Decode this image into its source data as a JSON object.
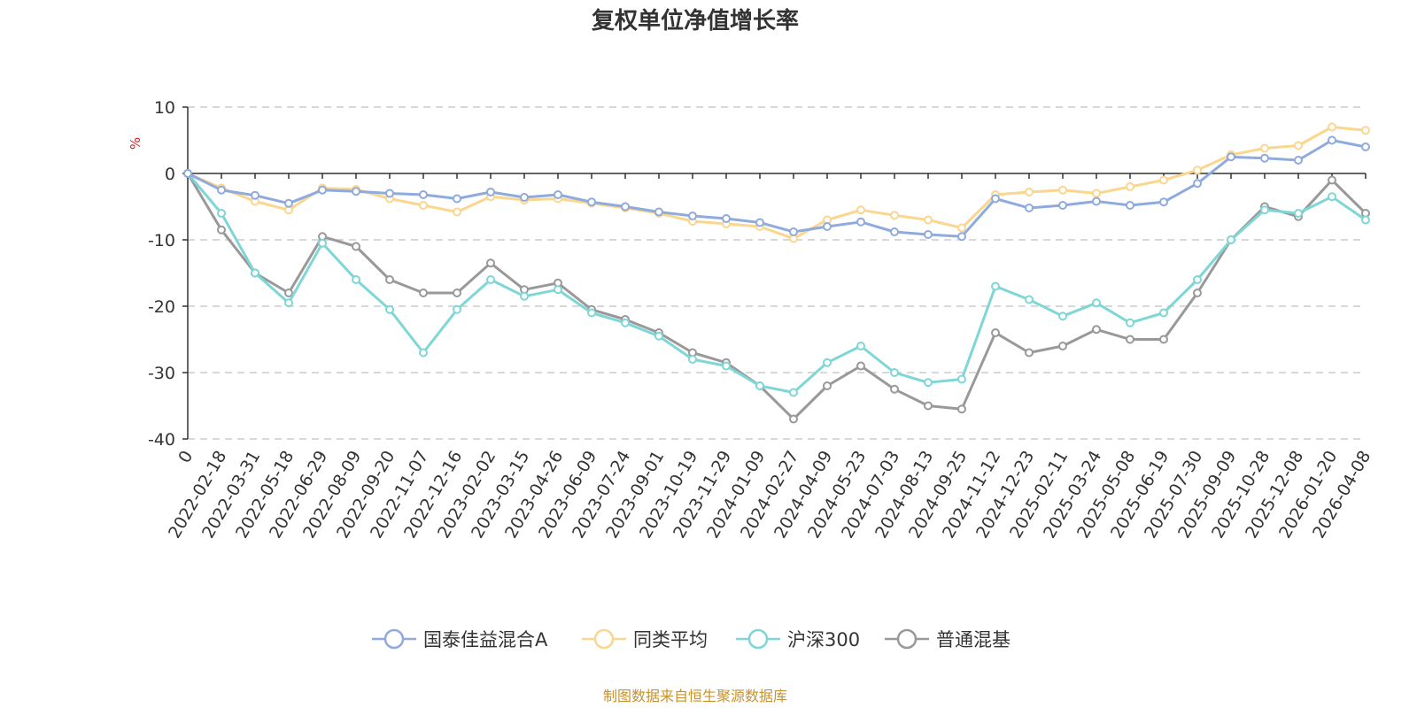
{
  "chart_data": {
    "type": "line",
    "title": "复权单位净值增长率",
    "ylabel": "%",
    "ylim": [
      -40,
      10
    ],
    "yticks": [
      10,
      0,
      -10,
      -20,
      -30,
      -40
    ],
    "x_categories": [
      "0",
      "2022-02-18",
      "2022-03-31",
      "2022-05-18",
      "2022-06-29",
      "2022-08-09",
      "2022-09-20",
      "2022-11-07",
      "2022-12-16",
      "2023-02-02",
      "2023-03-15",
      "2023-04-26",
      "2023-06-09",
      "2023-07-24",
      "2023-09-01",
      "2023-10-19",
      "2023-11-29",
      "2024-01-09",
      "2024-02-27",
      "2024-04-09",
      "2024-05-23",
      "2024-07-03",
      "2024-08-13",
      "2024-09-25",
      "2024-11-12",
      "2024-12-23",
      "2025-02-11",
      "2025-03-24",
      "2025-05-08",
      "2025-06-19",
      "2025-07-30",
      "2025-09-09",
      "2025-10-28",
      "2025-12-08",
      "2026-01-20",
      "2026-04-08"
    ],
    "grid": "dashed-horizontal",
    "legend_position": "bottom",
    "source": "制图数据来自恒生聚源数据库",
    "series": [
      {
        "name": "国泰佳益混合A",
        "color": "#8faadc",
        "values": [
          0,
          -2.5,
          -3.3,
          -4.5,
          -2.5,
          -2.7,
          -3.0,
          -3.2,
          -3.8,
          -2.8,
          -3.6,
          -3.2,
          -4.3,
          -5.0,
          -5.8,
          -6.4,
          -6.8,
          -7.4,
          -8.8,
          -8.0,
          -7.3,
          -8.8,
          -9.2,
          -9.5,
          -3.8,
          -5.2,
          -4.8,
          -4.2,
          -4.8,
          -4.3,
          -1.5,
          2.5,
          2.3,
          2.0,
          5.0,
          4.0
        ]
      },
      {
        "name": "同类平均",
        "color": "#fad68e",
        "values": [
          0,
          -2.2,
          -4.2,
          -5.5,
          -2.2,
          -2.4,
          -3.8,
          -4.8,
          -5.8,
          -3.5,
          -4.0,
          -3.8,
          -4.5,
          -5.2,
          -6.0,
          -7.2,
          -7.6,
          -8.0,
          -9.8,
          -7.0,
          -5.5,
          -6.3,
          -7.0,
          -8.2,
          -3.2,
          -2.8,
          -2.5,
          -3.0,
          -2.0,
          -1.0,
          0.5,
          2.8,
          3.8,
          4.2,
          7.0,
          6.5
        ]
      },
      {
        "name": "沪深300",
        "color": "#7fd6d6",
        "values": [
          0,
          -6.0,
          -15.0,
          -19.5,
          -10.5,
          -16.0,
          -20.5,
          -27.0,
          -20.5,
          -16.0,
          -18.5,
          -17.5,
          -21.0,
          -22.5,
          -24.5,
          -28.0,
          -29.0,
          -32.0,
          -33.0,
          -28.5,
          -26.0,
          -30.0,
          -31.5,
          -31.0,
          -17.0,
          -19.0,
          -21.5,
          -19.5,
          -22.5,
          -21.0,
          -16.0,
          -10.0,
          -5.5,
          -6.0,
          -3.5,
          -7.0
        ]
      },
      {
        "name": "普通混基",
        "color": "#999999",
        "values": [
          0,
          -8.5,
          -15.0,
          -18.0,
          -9.5,
          -11.0,
          -16.0,
          -18.0,
          -18.0,
          -13.5,
          -17.5,
          -16.5,
          -20.5,
          -22.0,
          -24.0,
          -27.0,
          -28.5,
          -32.0,
          -37.0,
          -32.0,
          -29.0,
          -32.5,
          -35.0,
          -35.5,
          -24.0,
          -27.0,
          -26.0,
          -23.5,
          -25.0,
          -25.0,
          -18.0,
          -10.0,
          -5.0,
          -6.5,
          -1.0,
          -6.0
        ]
      }
    ]
  }
}
